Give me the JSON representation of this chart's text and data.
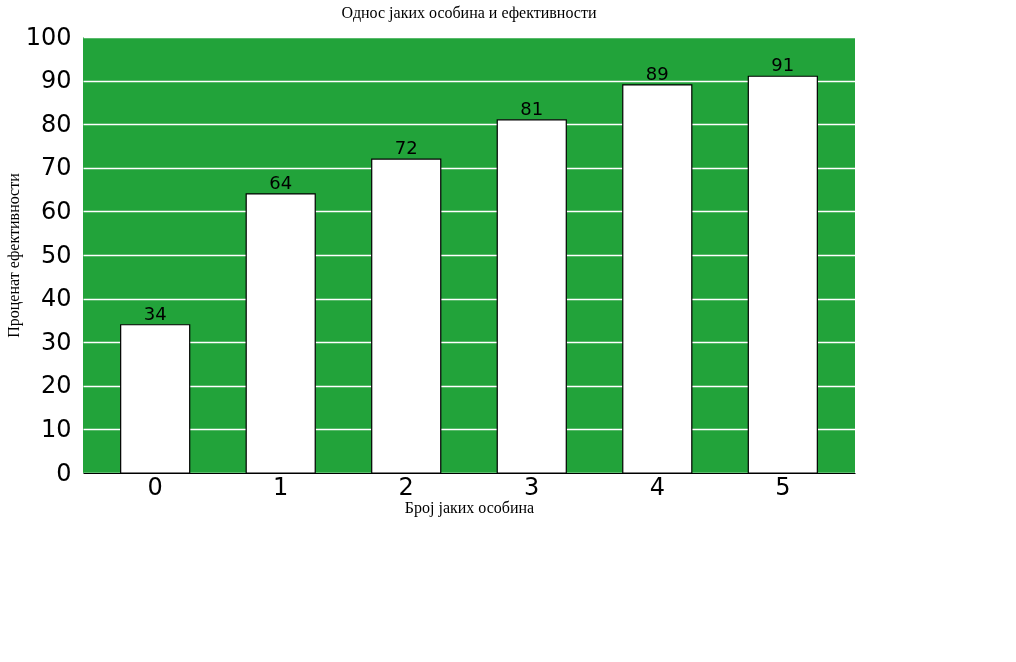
{
  "chart_data": {
    "type": "bar",
    "title": "Однос јаких особина и ефективности",
    "xlabel": "Број јаких особина",
    "ylabel": "Проценат ефективности",
    "categories": [
      "0",
      "1",
      "2",
      "3",
      "4",
      "5"
    ],
    "values": [
      34,
      64,
      72,
      81,
      89,
      91
    ],
    "color": "#ffffff",
    "ylim": [
      0,
      100
    ],
    "yticks": [
      0,
      10,
      20,
      30,
      40,
      50,
      60,
      70,
      80,
      90,
      100
    ],
    "grid": "y",
    "data_labels": true
  }
}
